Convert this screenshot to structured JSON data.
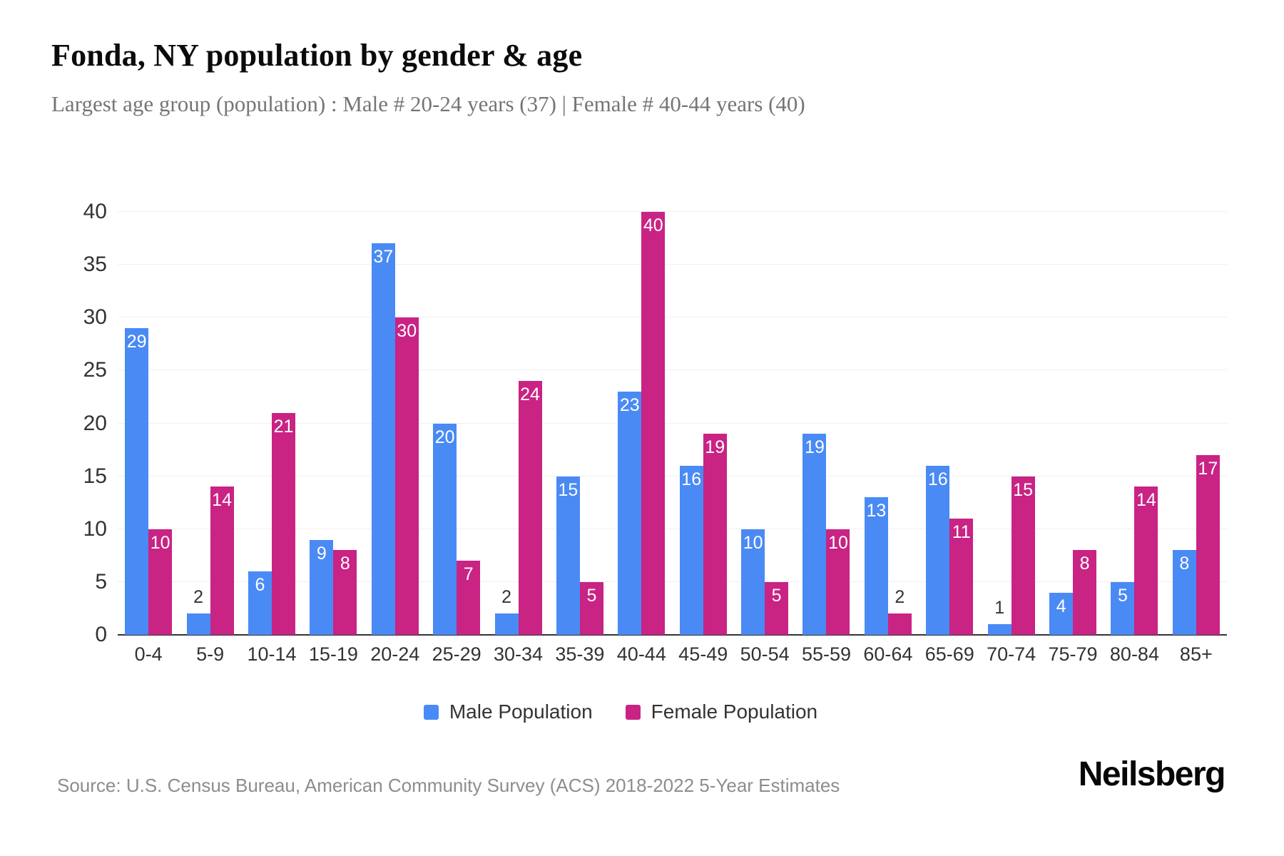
{
  "header": {
    "title": "Fonda, NY population by gender & age",
    "subtitle": "Largest age group (population) : Male # 20-24 years (37) | Female # 40-44 years (40)"
  },
  "footer": {
    "source": "Source: U.S. Census Bureau, American Community Survey (ACS) 2018-2022 5-Year Estimates",
    "logo": "Neilsberg"
  },
  "colors": {
    "male": "#4a8af4",
    "female": "#c92384",
    "gridline": "#f0f0f0",
    "axis_line": "#333333",
    "tick_text": "#333333",
    "subtitle_text": "#757575",
    "source_text": "#8d8d8d"
  },
  "chart_data": {
    "type": "bar",
    "title": "Fonda, NY population by gender & age",
    "xlabel": "",
    "ylabel": "",
    "categories": [
      "0-4",
      "5-9",
      "10-14",
      "15-19",
      "20-24",
      "25-29",
      "30-34",
      "35-39",
      "40-44",
      "45-49",
      "50-54",
      "55-59",
      "60-64",
      "65-69",
      "70-74",
      "75-79",
      "80-84",
      "85+"
    ],
    "series": [
      {
        "name": "Male Population",
        "color": "#4a8af4",
        "values": [
          29,
          2,
          6,
          9,
          37,
          20,
          2,
          15,
          23,
          16,
          10,
          19,
          13,
          16,
          1,
          4,
          5,
          8
        ]
      },
      {
        "name": "Female Population",
        "color": "#c92384",
        "values": [
          10,
          14,
          21,
          8,
          30,
          7,
          24,
          5,
          40,
          19,
          5,
          10,
          2,
          11,
          15,
          8,
          14,
          17
        ]
      }
    ],
    "ylim": [
      0,
      40
    ],
    "yticks": [
      0,
      5,
      10,
      15,
      20,
      25,
      30,
      35,
      40
    ],
    "grid": true,
    "legend_position": "bottom",
    "bar_value_labels": true,
    "outside_label_max": 2
  }
}
